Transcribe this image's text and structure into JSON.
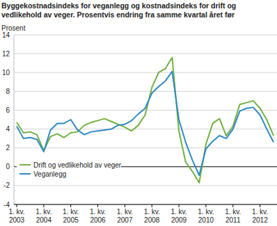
{
  "chart_data": {
    "type": "line",
    "title": "Byggekostnadsindeks for veganlegg og kostnadsindeks for drift og vedlikehold av veger. Prosentvis endring fra samme kvartal året før",
    "y_label": "Prosent",
    "categories": [
      "1. kv. 2003",
      null,
      null,
      null,
      "1. kv. 2004",
      null,
      null,
      null,
      "1. kv. 2005",
      null,
      null,
      null,
      "1. kv. 2006",
      null,
      null,
      null,
      "1. kv. 2007",
      null,
      null,
      null,
      "1. kv. 2008",
      null,
      null,
      null,
      "1. kv. 2009",
      null,
      null,
      null,
      "1. kv. 2010",
      null,
      null,
      null,
      "1. kv. 2011",
      null,
      null,
      null,
      "1. kv. 2012",
      null,
      null
    ],
    "series": [
      {
        "name": "Drift og vedlikehold av veger",
        "color": "#72b043",
        "values": [
          4.7,
          3.6,
          3.7,
          3.4,
          1.7,
          3.2,
          3.5,
          3.1,
          3.6,
          3.7,
          4.4,
          4.7,
          4.9,
          5.1,
          4.8,
          4.5,
          4.2,
          3.8,
          4.4,
          5.5,
          8.4,
          10.0,
          10.4,
          11.6,
          3.8,
          0.5,
          -0.5,
          -1.7,
          2.4,
          4.6,
          5.1,
          3.3,
          4.3,
          6.6,
          6.8,
          7.0,
          6.2,
          5.0,
          3.3
        ]
      },
      {
        "name": "Veganlegg",
        "color": "#2f8ac4",
        "values": [
          4.3,
          3.0,
          3.1,
          2.9,
          1.6,
          3.9,
          4.6,
          4.6,
          5.0,
          3.9,
          3.4,
          3.7,
          3.8,
          3.9,
          4.0,
          4.4,
          4.5,
          4.9,
          5.6,
          6.2,
          7.8,
          8.5,
          9.1,
          10.1,
          5.0,
          2.6,
          0.7,
          -0.9,
          1.9,
          2.7,
          3.3,
          3.0,
          4.0,
          5.9,
          6.2,
          6.3,
          5.5,
          4.0,
          2.6
        ]
      }
    ],
    "ylim": [
      -4,
      14
    ],
    "yticks": [
      -4,
      -2,
      0,
      2,
      4,
      6,
      8,
      10,
      12,
      14
    ],
    "grid": true,
    "legend": "lower left"
  }
}
